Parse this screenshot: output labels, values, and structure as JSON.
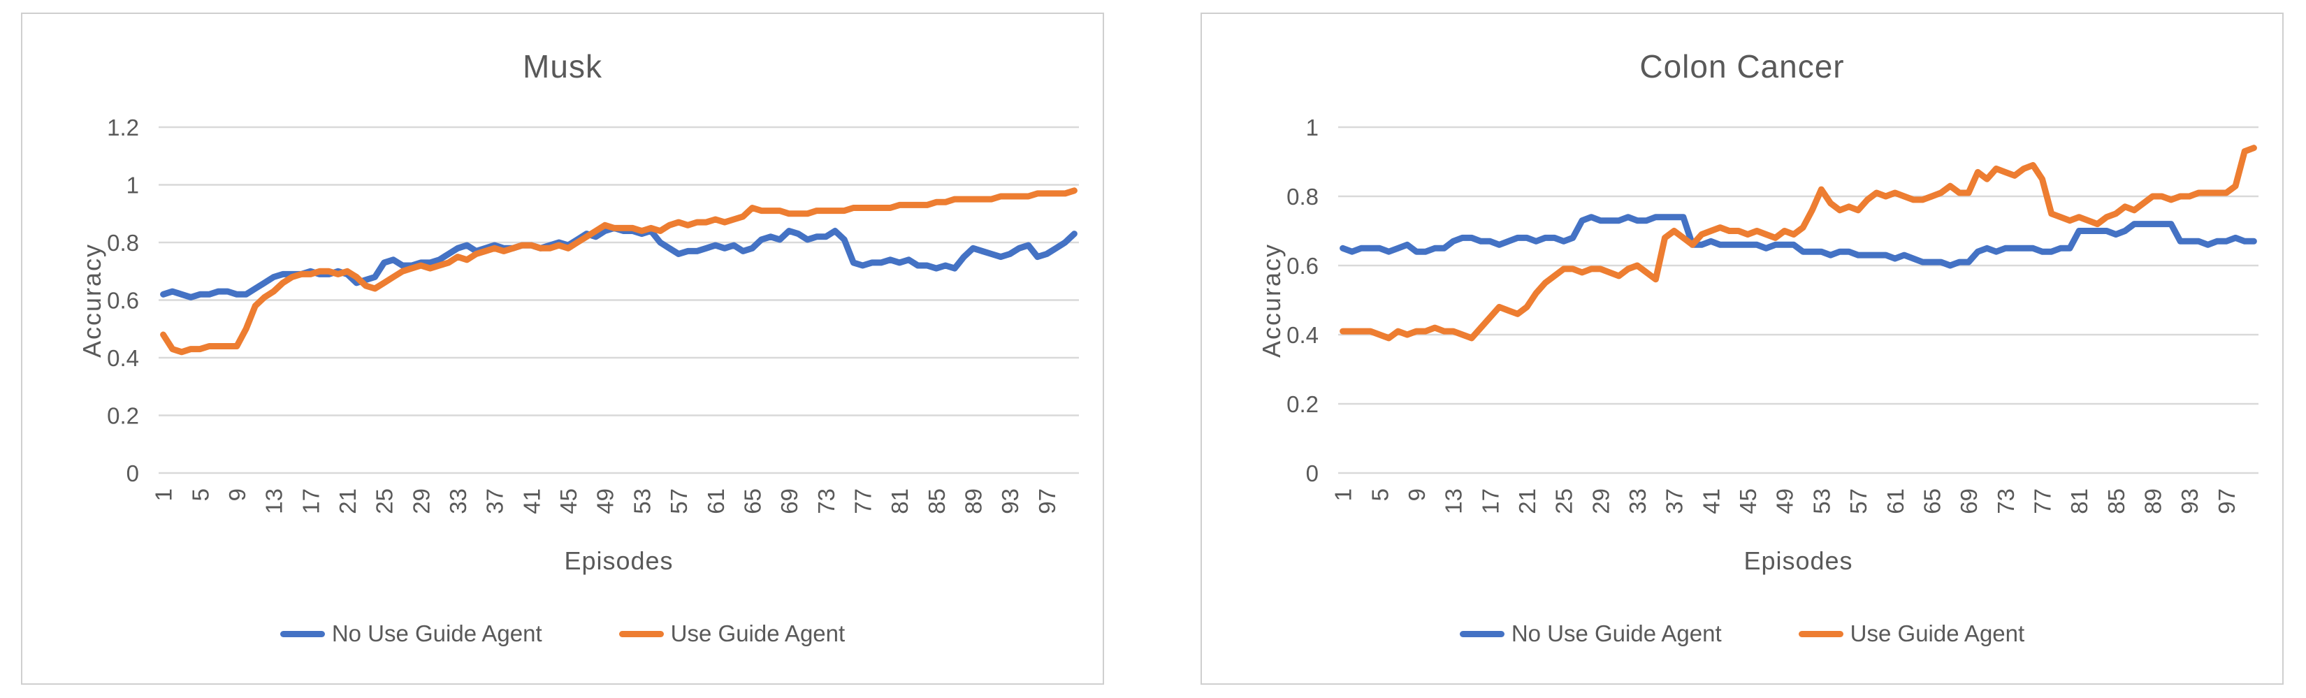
{
  "colors": {
    "series_blue": "#4472C4",
    "series_orange": "#ED7D31",
    "gridline": "#D9D9D9",
    "text": "#595959",
    "panel_border": "#CFCFCF",
    "background": "#FFFFFF"
  },
  "chart_data": [
    {
      "type": "line",
      "title": "Musk",
      "xlabel": "Episodes",
      "ylabel": "Accuracy",
      "ylim": [
        0,
        1.2
      ],
      "yticks": [
        1.2,
        1,
        0.8,
        0.6,
        0.4,
        0.2,
        0
      ],
      "xtick_labels": [
        1,
        5,
        9,
        13,
        17,
        21,
        25,
        29,
        33,
        37,
        41,
        45,
        49,
        53,
        57,
        61,
        65,
        69,
        73,
        77,
        81,
        85,
        89,
        93,
        97
      ],
      "grid": true,
      "legend_position": "bottom",
      "series": [
        {
          "name": "No Use Guide Agent",
          "color": "#4472C4",
          "values": [
            0.62,
            0.63,
            0.62,
            0.61,
            0.62,
            0.62,
            0.63,
            0.63,
            0.62,
            0.62,
            0.64,
            0.66,
            0.68,
            0.69,
            0.69,
            0.69,
            0.7,
            0.69,
            0.69,
            0.7,
            0.69,
            0.66,
            0.67,
            0.68,
            0.73,
            0.74,
            0.72,
            0.72,
            0.73,
            0.73,
            0.74,
            0.76,
            0.78,
            0.79,
            0.77,
            0.78,
            0.79,
            0.78,
            0.78,
            0.79,
            0.79,
            0.78,
            0.79,
            0.8,
            0.79,
            0.81,
            0.83,
            0.82,
            0.84,
            0.85,
            0.84,
            0.84,
            0.83,
            0.84,
            0.8,
            0.78,
            0.76,
            0.77,
            0.77,
            0.78,
            0.79,
            0.78,
            0.79,
            0.77,
            0.78,
            0.81,
            0.82,
            0.81,
            0.84,
            0.83,
            0.81,
            0.82,
            0.82,
            0.84,
            0.81,
            0.73,
            0.72,
            0.73,
            0.73,
            0.74,
            0.73,
            0.74,
            0.72,
            0.72,
            0.71,
            0.72,
            0.71,
            0.75,
            0.78,
            0.77,
            0.76,
            0.75,
            0.76,
            0.78,
            0.79,
            0.75,
            0.76,
            0.78,
            0.8,
            0.83
          ]
        },
        {
          "name": "Use Guide Agent",
          "color": "#ED7D31",
          "values": [
            0.48,
            0.43,
            0.42,
            0.43,
            0.43,
            0.44,
            0.44,
            0.44,
            0.44,
            0.5,
            0.58,
            0.61,
            0.63,
            0.66,
            0.68,
            0.69,
            0.69,
            0.7,
            0.7,
            0.69,
            0.7,
            0.68,
            0.65,
            0.64,
            0.66,
            0.68,
            0.7,
            0.71,
            0.72,
            0.71,
            0.72,
            0.73,
            0.75,
            0.74,
            0.76,
            0.77,
            0.78,
            0.77,
            0.78,
            0.79,
            0.79,
            0.78,
            0.78,
            0.79,
            0.78,
            0.8,
            0.82,
            0.84,
            0.86,
            0.85,
            0.85,
            0.85,
            0.84,
            0.85,
            0.84,
            0.86,
            0.87,
            0.86,
            0.87,
            0.87,
            0.88,
            0.87,
            0.88,
            0.89,
            0.92,
            0.91,
            0.91,
            0.91,
            0.9,
            0.9,
            0.9,
            0.91,
            0.91,
            0.91,
            0.91,
            0.92,
            0.92,
            0.92,
            0.92,
            0.92,
            0.93,
            0.93,
            0.93,
            0.93,
            0.94,
            0.94,
            0.95,
            0.95,
            0.95,
            0.95,
            0.95,
            0.96,
            0.96,
            0.96,
            0.96,
            0.97,
            0.97,
            0.97,
            0.97,
            0.98
          ]
        }
      ]
    },
    {
      "type": "line",
      "title": "Colon Cancer",
      "xlabel": "Episodes",
      "ylabel": "Accuracy",
      "ylim": [
        0,
        1
      ],
      "yticks": [
        1,
        0.8,
        0.6,
        0.4,
        0.2,
        0
      ],
      "xtick_labels": [
        1,
        5,
        9,
        13,
        17,
        21,
        25,
        29,
        33,
        37,
        41,
        45,
        49,
        53,
        57,
        61,
        65,
        69,
        73,
        77,
        81,
        85,
        89,
        93,
        97
      ],
      "grid": true,
      "legend_position": "bottom",
      "series": [
        {
          "name": "No Use Guide Agent",
          "color": "#4472C4",
          "values": [
            0.65,
            0.64,
            0.65,
            0.65,
            0.65,
            0.64,
            0.65,
            0.66,
            0.64,
            0.64,
            0.65,
            0.65,
            0.67,
            0.68,
            0.68,
            0.67,
            0.67,
            0.66,
            0.67,
            0.68,
            0.68,
            0.67,
            0.68,
            0.68,
            0.67,
            0.68,
            0.73,
            0.74,
            0.73,
            0.73,
            0.73,
            0.74,
            0.73,
            0.73,
            0.74,
            0.74,
            0.74,
            0.74,
            0.66,
            0.66,
            0.67,
            0.66,
            0.66,
            0.66,
            0.66,
            0.66,
            0.65,
            0.66,
            0.66,
            0.66,
            0.64,
            0.64,
            0.64,
            0.63,
            0.64,
            0.64,
            0.63,
            0.63,
            0.63,
            0.63,
            0.62,
            0.63,
            0.62,
            0.61,
            0.61,
            0.61,
            0.6,
            0.61,
            0.61,
            0.64,
            0.65,
            0.64,
            0.65,
            0.65,
            0.65,
            0.65,
            0.64,
            0.64,
            0.65,
            0.65,
            0.7,
            0.7,
            0.7,
            0.7,
            0.69,
            0.7,
            0.72,
            0.72,
            0.72,
            0.72,
            0.72,
            0.67,
            0.67,
            0.67,
            0.66,
            0.67,
            0.67,
            0.68,
            0.67,
            0.67
          ]
        },
        {
          "name": "Use Guide Agent",
          "color": "#ED7D31",
          "values": [
            0.41,
            0.41,
            0.41,
            0.41,
            0.4,
            0.39,
            0.41,
            0.4,
            0.41,
            0.41,
            0.42,
            0.41,
            0.41,
            0.4,
            0.39,
            0.42,
            0.45,
            0.48,
            0.47,
            0.46,
            0.48,
            0.52,
            0.55,
            0.57,
            0.59,
            0.59,
            0.58,
            0.59,
            0.59,
            0.58,
            0.57,
            0.59,
            0.6,
            0.58,
            0.56,
            0.68,
            0.7,
            0.68,
            0.66,
            0.69,
            0.7,
            0.71,
            0.7,
            0.7,
            0.69,
            0.7,
            0.69,
            0.68,
            0.7,
            0.69,
            0.71,
            0.76,
            0.82,
            0.78,
            0.76,
            0.77,
            0.76,
            0.79,
            0.81,
            0.8,
            0.81,
            0.8,
            0.79,
            0.79,
            0.8,
            0.81,
            0.83,
            0.81,
            0.81,
            0.87,
            0.85,
            0.88,
            0.87,
            0.86,
            0.88,
            0.89,
            0.85,
            0.75,
            0.74,
            0.73,
            0.74,
            0.73,
            0.72,
            0.74,
            0.75,
            0.77,
            0.76,
            0.78,
            0.8,
            0.8,
            0.79,
            0.8,
            0.8,
            0.81,
            0.81,
            0.81,
            0.81,
            0.83,
            0.93,
            0.94
          ]
        }
      ]
    }
  ]
}
